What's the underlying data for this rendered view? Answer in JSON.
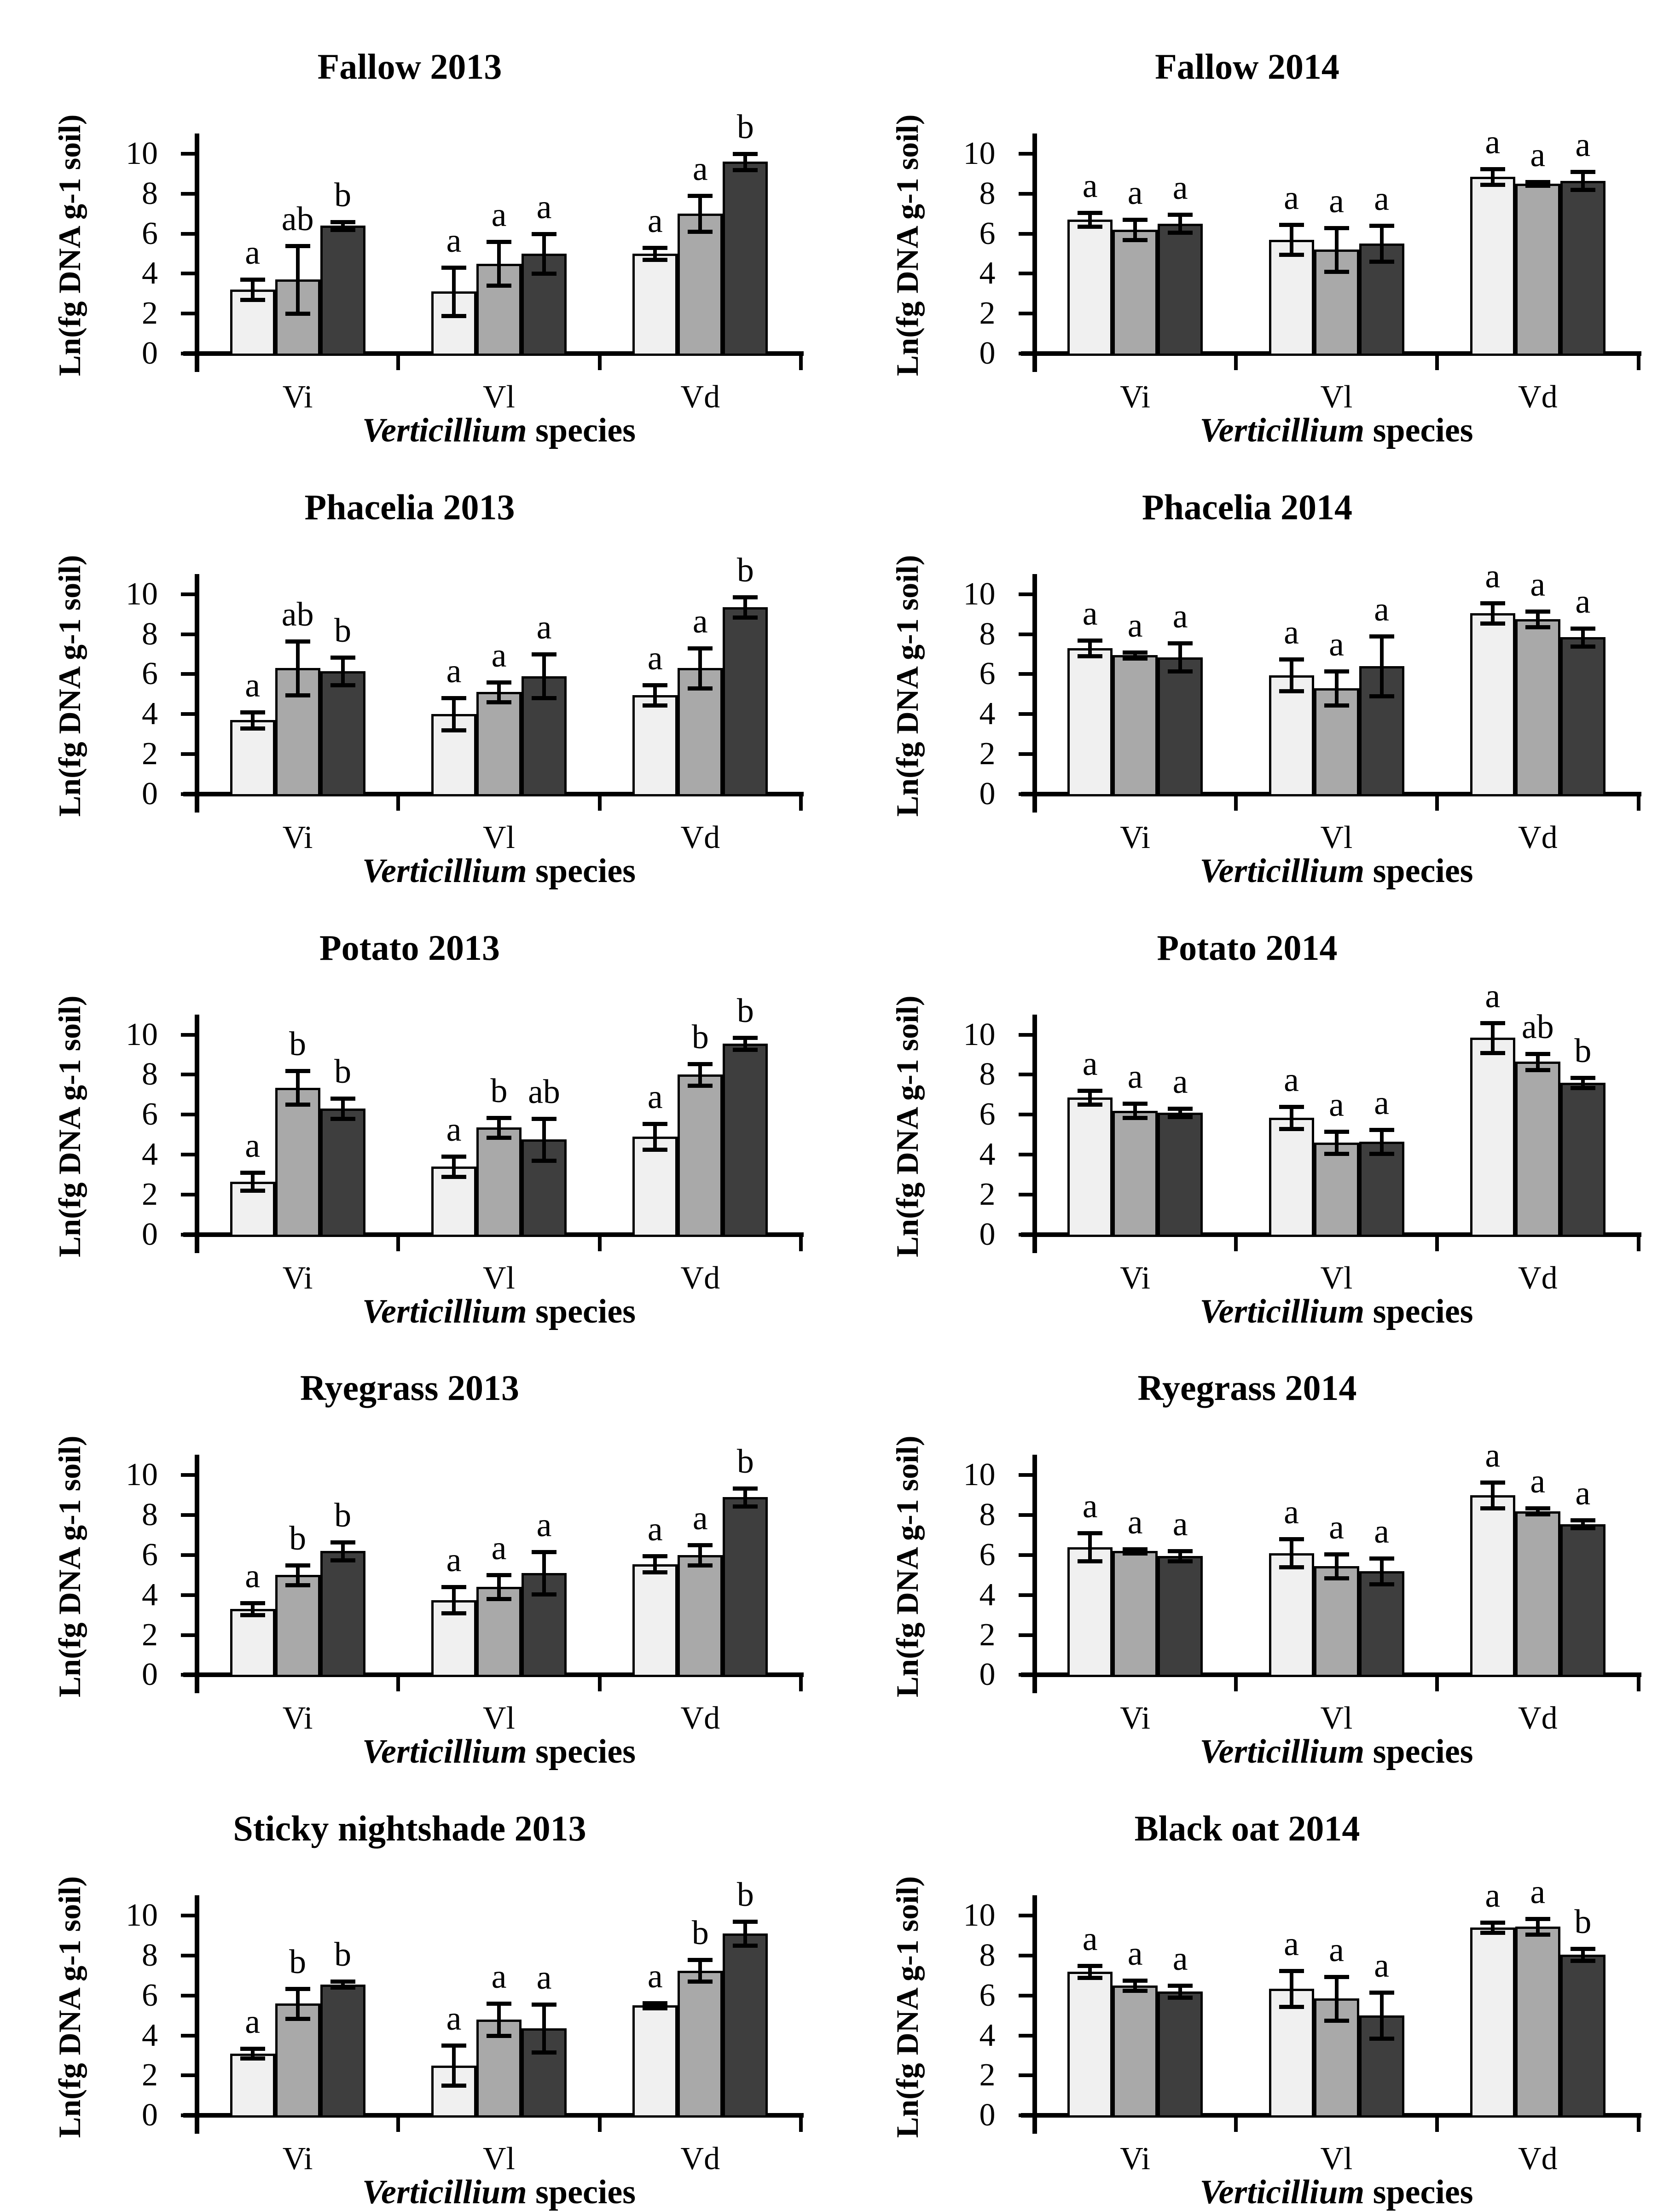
{
  "figure": {
    "y_axis_label": "Ln(fg DNA g-1 soil)",
    "x_axis_label": {
      "italic": "Verticillium",
      "regular": " species"
    },
    "y_ticks": [
      0,
      2,
      4,
      6,
      8,
      10
    ],
    "ylim": [
      0,
      10.8
    ],
    "bar_fill_colors": [
      "#f0f0f0",
      "#a9a9a9",
      "#3e3e3e"
    ],
    "bar_border_color": "#000000",
    "error_bar_color": "#000000",
    "background_color": "#ffffff"
  },
  "chart_data": [
    {
      "type": "bar",
      "title": "Fallow 2013",
      "categories": [
        "Vi",
        "Vl",
        "Vd"
      ],
      "series": [
        {
          "name": "series-1",
          "color": "#f0f0f0",
          "values": [
            3.2,
            3.1,
            5.0
          ],
          "errors": [
            0.5,
            1.2,
            0.3
          ],
          "letters": [
            "a",
            "a",
            "a"
          ]
        },
        {
          "name": "series-2",
          "color": "#a9a9a9",
          "values": [
            3.7,
            4.5,
            7.0
          ],
          "errors": [
            1.7,
            1.1,
            0.9
          ],
          "letters": [
            "ab",
            "a",
            "a"
          ]
        },
        {
          "name": "series-3",
          "color": "#3e3e3e",
          "values": [
            6.4,
            5.0,
            9.6
          ],
          "errors": [
            0.2,
            1.0,
            0.4
          ],
          "letters": [
            "b",
            "a",
            "b"
          ]
        }
      ]
    },
    {
      "type": "bar",
      "title": "Fallow 2014",
      "categories": [
        "Vi",
        "Vl",
        "Vd"
      ],
      "series": [
        {
          "name": "series-1",
          "color": "#f0f0f0",
          "values": [
            6.7,
            5.7,
            8.85
          ],
          "errors": [
            0.35,
            0.75,
            0.4
          ],
          "letters": [
            "a",
            "a",
            "a"
          ]
        },
        {
          "name": "series-2",
          "color": "#a9a9a9",
          "values": [
            6.2,
            5.2,
            8.5
          ],
          "errors": [
            0.5,
            1.1,
            0.1
          ],
          "letters": [
            "a",
            "a",
            "a"
          ]
        },
        {
          "name": "series-3",
          "color": "#3e3e3e",
          "values": [
            6.5,
            5.5,
            8.65
          ],
          "errors": [
            0.45,
            0.9,
            0.45
          ],
          "letters": [
            "a",
            "a",
            "a"
          ]
        }
      ]
    },
    {
      "type": "bar",
      "title": "Phacelia 2013",
      "categories": [
        "Vi",
        "Vl",
        "Vd"
      ],
      "series": [
        {
          "name": "series-1",
          "color": "#f0f0f0",
          "values": [
            3.7,
            4.0,
            4.95
          ],
          "errors": [
            0.4,
            0.8,
            0.5
          ],
          "letters": [
            "a",
            "a",
            "a"
          ]
        },
        {
          "name": "series-2",
          "color": "#a9a9a9",
          "values": [
            6.3,
            5.1,
            6.3
          ],
          "errors": [
            1.35,
            0.5,
            1.0
          ],
          "letters": [
            "ab",
            "a",
            "a"
          ]
        },
        {
          "name": "series-3",
          "color": "#3e3e3e",
          "values": [
            6.15,
            5.9,
            9.35
          ],
          "errors": [
            0.7,
            1.1,
            0.5
          ],
          "letters": [
            "b",
            "a",
            "b"
          ]
        }
      ]
    },
    {
      "type": "bar",
      "title": "Phacelia 2014",
      "categories": [
        "Vi",
        "Vl",
        "Vd"
      ],
      "series": [
        {
          "name": "series-1",
          "color": "#f0f0f0",
          "values": [
            7.3,
            5.95,
            9.05
          ],
          "errors": [
            0.4,
            0.8,
            0.5
          ],
          "letters": [
            "a",
            "a",
            "a"
          ]
        },
        {
          "name": "series-2",
          "color": "#a9a9a9",
          "values": [
            6.95,
            5.3,
            8.75
          ],
          "errors": [
            0.15,
            0.85,
            0.4
          ],
          "letters": [
            "a",
            "a",
            "a"
          ]
        },
        {
          "name": "series-3",
          "color": "#3e3e3e",
          "values": [
            6.85,
            6.4,
            7.85
          ],
          "errors": [
            0.7,
            1.5,
            0.45
          ],
          "letters": [
            "a",
            "a",
            "a"
          ]
        }
      ]
    },
    {
      "type": "bar",
      "title": "Potato 2013",
      "categories": [
        "Vi",
        "Vl",
        "Vd"
      ],
      "series": [
        {
          "name": "series-1",
          "color": "#f0f0f0",
          "values": [
            2.65,
            3.4,
            4.9
          ],
          "errors": [
            0.45,
            0.5,
            0.65
          ],
          "letters": [
            "a",
            "a",
            "a"
          ]
        },
        {
          "name": "series-2",
          "color": "#a9a9a9",
          "values": [
            7.35,
            5.35,
            8.0
          ],
          "errors": [
            0.85,
            0.5,
            0.55
          ],
          "letters": [
            "b",
            "b",
            "b"
          ]
        },
        {
          "name": "series-3",
          "color": "#3e3e3e",
          "values": [
            6.3,
            4.75,
            9.55
          ],
          "errors": [
            0.5,
            1.05,
            0.3
          ],
          "letters": [
            "b",
            "ab",
            "b"
          ]
        }
      ]
    },
    {
      "type": "bar",
      "title": "Potato 2014",
      "categories": [
        "Vi",
        "Vl",
        "Vd"
      ],
      "series": [
        {
          "name": "series-1",
          "color": "#f0f0f0",
          "values": [
            6.85,
            5.85,
            9.85
          ],
          "errors": [
            0.35,
            0.55,
            0.75
          ],
          "letters": [
            "a",
            "a",
            "a"
          ]
        },
        {
          "name": "series-2",
          "color": "#a9a9a9",
          "values": [
            6.2,
            4.6,
            8.65
          ],
          "errors": [
            0.35,
            0.55,
            0.4
          ],
          "letters": [
            "a",
            "a",
            "ab"
          ]
        },
        {
          "name": "series-3",
          "color": "#3e3e3e",
          "values": [
            6.1,
            4.65,
            7.6
          ],
          "errors": [
            0.2,
            0.6,
            0.25
          ],
          "letters": [
            "a",
            "a",
            "b"
          ]
        }
      ]
    },
    {
      "type": "bar",
      "title": "Ryegrass 2013",
      "categories": [
        "Vi",
        "Vl",
        "Vd"
      ],
      "series": [
        {
          "name": "series-1",
          "color": "#f0f0f0",
          "values": [
            3.3,
            3.75,
            5.55
          ],
          "errors": [
            0.3,
            0.65,
            0.4
          ],
          "letters": [
            "a",
            "a",
            "a"
          ]
        },
        {
          "name": "series-2",
          "color": "#a9a9a9",
          "values": [
            5.0,
            4.4,
            6.0
          ],
          "errors": [
            0.5,
            0.6,
            0.5
          ],
          "letters": [
            "b",
            "a",
            "a"
          ]
        },
        {
          "name": "series-3",
          "color": "#3e3e3e",
          "values": [
            6.2,
            5.1,
            8.9
          ],
          "errors": [
            0.45,
            1.05,
            0.45
          ],
          "letters": [
            "b",
            "a",
            "b"
          ]
        }
      ]
    },
    {
      "type": "bar",
      "title": "Ryegrass 2014",
      "categories": [
        "Vi",
        "Vl",
        "Vd"
      ],
      "series": [
        {
          "name": "series-1",
          "color": "#f0f0f0",
          "values": [
            6.4,
            6.1,
            9.0
          ],
          "errors": [
            0.7,
            0.7,
            0.65
          ],
          "letters": [
            "a",
            "a",
            "a"
          ]
        },
        {
          "name": "series-2",
          "color": "#a9a9a9",
          "values": [
            6.2,
            5.45,
            8.2
          ],
          "errors": [
            0.1,
            0.6,
            0.15
          ],
          "letters": [
            "a",
            "a",
            "a"
          ]
        },
        {
          "name": "series-3",
          "color": "#3e3e3e",
          "values": [
            5.95,
            5.2,
            7.55
          ],
          "errors": [
            0.25,
            0.65,
            0.2
          ],
          "letters": [
            "a",
            "a",
            "a"
          ]
        }
      ]
    },
    {
      "type": "bar",
      "title": "Sticky nightshade 2013",
      "categories": [
        "Vi",
        "Vl",
        "Vd"
      ],
      "series": [
        {
          "name": "series-1",
          "color": "#f0f0f0",
          "values": [
            3.1,
            2.5,
            5.5
          ],
          "errors": [
            0.25,
            1.0,
            0.12
          ],
          "letters": [
            "a",
            "a",
            "a"
          ]
        },
        {
          "name": "series-2",
          "color": "#a9a9a9",
          "values": [
            5.6,
            4.8,
            7.25
          ],
          "errors": [
            0.75,
            0.8,
            0.55
          ],
          "letters": [
            "b",
            "a",
            "b"
          ]
        },
        {
          "name": "series-3",
          "color": "#3e3e3e",
          "values": [
            6.55,
            4.35,
            9.1
          ],
          "errors": [
            0.15,
            1.2,
            0.6
          ],
          "letters": [
            "b",
            "a",
            "b"
          ]
        }
      ]
    },
    {
      "type": "bar",
      "title": "Black oat 2014",
      "categories": [
        "Vi",
        "Vl",
        "Vd"
      ],
      "series": [
        {
          "name": "series-1",
          "color": "#f0f0f0",
          "values": [
            7.2,
            6.35,
            9.4
          ],
          "errors": [
            0.3,
            0.9,
            0.25
          ],
          "letters": [
            "a",
            "a",
            "a"
          ]
        },
        {
          "name": "series-2",
          "color": "#a9a9a9",
          "values": [
            6.5,
            5.85,
            9.45
          ],
          "errors": [
            0.25,
            1.1,
            0.4
          ],
          "letters": [
            "a",
            "a",
            "a"
          ]
        },
        {
          "name": "series-3",
          "color": "#3e3e3e",
          "values": [
            6.2,
            5.0,
            8.05
          ],
          "errors": [
            0.3,
            1.15,
            0.3
          ],
          "letters": [
            "a",
            "a",
            "b"
          ]
        }
      ]
    }
  ]
}
